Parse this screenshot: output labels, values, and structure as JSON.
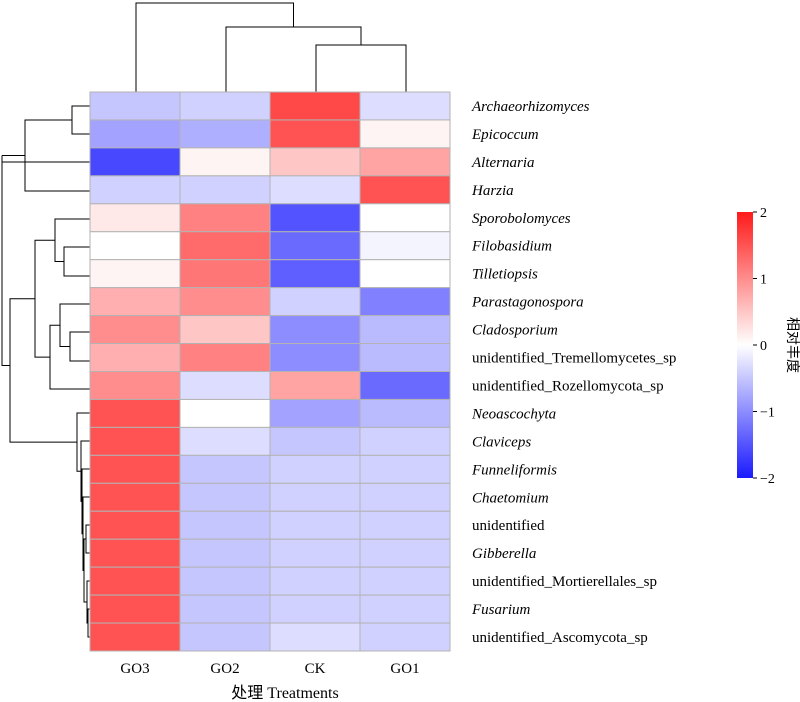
{
  "chart_data": {
    "type": "heatmap",
    "xlabel": "处理 Treatments",
    "columns": [
      "GO3",
      "GO2",
      "CK",
      "GO1"
    ],
    "rows": [
      {
        "label": "Archaeorhizomyces",
        "italic": true
      },
      {
        "label": "Epicoccum",
        "italic": true
      },
      {
        "label": "Alternaria",
        "italic": true
      },
      {
        "label": "Harzia",
        "italic": true
      },
      {
        "label": "Sporobolomyces",
        "italic": true
      },
      {
        "label": "Filobasidium",
        "italic": true
      },
      {
        "label": "Tilletiopsis",
        "italic": true
      },
      {
        "label": "Parastagonospora",
        "italic": true
      },
      {
        "label": "Cladosporium",
        "italic": true
      },
      {
        "label": "unidentified_Tremellomycetes_sp",
        "italic": false
      },
      {
        "label": "unidentified_Rozellomycota_sp",
        "italic": false
      },
      {
        "label": "Neoascochyta",
        "italic": true
      },
      {
        "label": "Claviceps",
        "italic": true
      },
      {
        "label": "Funneliformis",
        "italic": true
      },
      {
        "label": "Chaetomium",
        "italic": true
      },
      {
        "label": "unidentified",
        "italic": false
      },
      {
        "label": "Gibberella",
        "italic": true
      },
      {
        "label": "unidentified_Mortierellales_sp",
        "italic": false
      },
      {
        "label": "Fusarium",
        "italic": true
      },
      {
        "label": "unidentified_Ascomycota_sp",
        "italic": false
      }
    ],
    "values": [
      [
        -0.5,
        -0.4,
        1.6,
        -0.3
      ],
      [
        -0.8,
        -0.7,
        1.5,
        0.1
      ],
      [
        -1.6,
        0.1,
        0.5,
        0.8
      ],
      [
        -0.4,
        -0.4,
        -0.3,
        1.5
      ],
      [
        0.2,
        1.1,
        -1.5,
        0.0
      ],
      [
        0.0,
        1.3,
        -1.3,
        -0.1
      ],
      [
        0.1,
        1.2,
        -1.4,
        0.0
      ],
      [
        0.7,
        1.0,
        -0.4,
        -1.1
      ],
      [
        1.0,
        0.5,
        -1.0,
        -0.6
      ],
      [
        0.7,
        1.1,
        -1.0,
        -0.6
      ],
      [
        1.0,
        -0.3,
        0.8,
        -1.3
      ],
      [
        1.5,
        0.0,
        -0.8,
        -0.6
      ],
      [
        1.5,
        -0.3,
        -0.5,
        -0.4
      ],
      [
        1.5,
        -0.5,
        -0.4,
        -0.4
      ],
      [
        1.5,
        -0.5,
        -0.4,
        -0.4
      ],
      [
        1.5,
        -0.5,
        -0.4,
        -0.4
      ],
      [
        1.5,
        -0.5,
        -0.4,
        -0.4
      ],
      [
        1.5,
        -0.5,
        -0.4,
        -0.4
      ],
      [
        1.5,
        -0.5,
        -0.4,
        -0.4
      ],
      [
        1.5,
        -0.5,
        -0.3,
        -0.4
      ]
    ],
    "colorbar": {
      "label": "相对丰度",
      "range": [
        -2,
        2
      ],
      "ticks": [
        2,
        1,
        0,
        -1,
        -2
      ],
      "tick_labels": [
        "2",
        "1",
        "0",
        "−1",
        "−2"
      ],
      "colors": {
        "low": "#1a1aff",
        "mid": "#ffffff",
        "high": "#ff1a1a"
      }
    },
    "cell_border_color": "#b3b3b3",
    "legend_position": "right"
  }
}
